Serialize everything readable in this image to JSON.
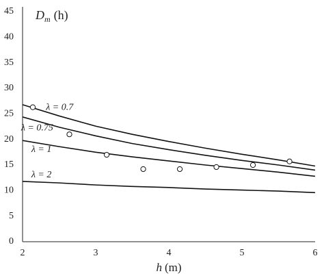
{
  "chart_data": {
    "type": "line",
    "ylabel": {
      "symbol": "D",
      "subscript": "m",
      "unit": "(h)"
    },
    "xlabel": {
      "symbol": "h",
      "unit": "(m)"
    },
    "x": [
      2,
      2.5,
      3,
      3.5,
      4,
      4.5,
      5,
      5.5,
      6
    ],
    "series": [
      {
        "name": "λ = 0.7",
        "color": "#111111",
        "values": [
          26.8,
          24.6,
          22.6,
          21.0,
          19.6,
          18.3,
          17.1,
          16.0,
          14.8
        ]
      },
      {
        "name": "λ = 0.75",
        "color": "#111111",
        "values": [
          24.4,
          22.4,
          20.7,
          19.2,
          18.0,
          16.9,
          15.9,
          15.0,
          14.0
        ]
      },
      {
        "name": "λ = 1",
        "color": "#111111",
        "values": [
          19.8,
          18.6,
          17.5,
          16.6,
          15.8,
          15.0,
          14.3,
          13.6,
          12.8
        ]
      },
      {
        "name": "λ = 2",
        "color": "#111111",
        "values": [
          11.8,
          11.5,
          11.1,
          10.8,
          10.6,
          10.3,
          10.1,
          9.9,
          9.6
        ]
      }
    ],
    "points": {
      "color": "#111111",
      "x": [
        2.14,
        2.64,
        3.15,
        3.65,
        4.15,
        4.65,
        5.15,
        5.65
      ],
      "values": [
        26.3,
        21.0,
        17.0,
        14.2,
        14.2,
        14.6,
        15.0,
        15.7
      ]
    },
    "xlim": [
      2,
      6
    ],
    "xticks": [
      2,
      3,
      4,
      5,
      6
    ],
    "ylim": [
      0,
      45
    ],
    "yticks": [
      0,
      5,
      10,
      15,
      20,
      25,
      30,
      35,
      40,
      45
    ]
  }
}
